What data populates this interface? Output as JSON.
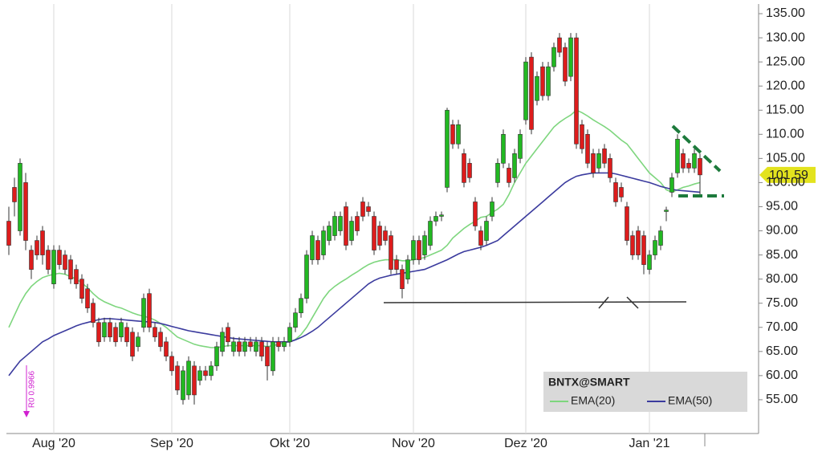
{
  "chart_data": {
    "type": "candlestick",
    "candles": {
      "name": "BNTX@SMART",
      "up_color": "#22b822",
      "down_color": "#dd1c1c",
      "open": [
        92,
        99,
        90,
        100,
        86,
        88,
        90,
        86,
        79,
        86,
        85,
        84,
        82,
        80,
        78,
        75,
        71,
        68,
        71,
        70,
        68,
        70,
        69,
        66,
        70,
        77,
        70,
        69,
        67,
        64,
        62,
        55,
        56,
        62,
        59,
        61,
        60,
        62,
        65,
        70,
        65,
        67,
        65,
        67,
        65,
        67,
        66,
        61,
        67,
        66,
        67,
        70,
        73,
        76,
        84,
        88,
        85,
        88,
        89,
        90,
        95,
        88,
        93,
        96,
        95,
        93,
        91,
        90,
        89,
        84,
        82,
        80,
        84,
        88,
        85,
        87,
        92,
        93,
        99,
        112,
        108,
        106,
        104,
        96,
        90,
        88,
        93,
        100,
        104,
        103,
        101,
        105,
        113,
        126,
        117,
        124,
        118,
        124,
        130,
        128,
        122,
        130,
        112,
        110,
        106,
        103,
        107,
        105,
        100,
        99,
        95,
        89,
        90,
        89,
        82,
        85,
        87,
        94,
        98,
        102,
        106,
        104,
        103,
        105
      ],
      "high": [
        95,
        101,
        105,
        102,
        87,
        89,
        91,
        87,
        87,
        87,
        86,
        85,
        83,
        81,
        79,
        76,
        72,
        72,
        72,
        71,
        72,
        71,
        70,
        69,
        77,
        78,
        71,
        70,
        68,
        65,
        63,
        62,
        64,
        63,
        62,
        62,
        63,
        67,
        70,
        71,
        68,
        68,
        68,
        68,
        68,
        68,
        67,
        68,
        68,
        68,
        71,
        74,
        77,
        86,
        90,
        89,
        91,
        92,
        94,
        94,
        96,
        93,
        94,
        97,
        96,
        94,
        92,
        91,
        90,
        85,
        83,
        85,
        89,
        89,
        90,
        93,
        94,
        94,
        115.5,
        113,
        113,
        107,
        105,
        97,
        91,
        93,
        97,
        105,
        111,
        104,
        107,
        111,
        126,
        127,
        123,
        125,
        125,
        129,
        131,
        129,
        131,
        131,
        113,
        111,
        107,
        107,
        108,
        106,
        101,
        100,
        96,
        90,
        91,
        90,
        86,
        89,
        91,
        95,
        102,
        110,
        107,
        105,
        107,
        106
      ],
      "low": [
        85,
        93,
        89,
        86,
        80,
        84,
        83,
        81,
        78,
        82,
        81,
        79,
        78,
        75,
        73,
        70,
        66,
        67,
        67,
        66,
        67,
        66,
        63,
        65,
        69,
        69,
        67,
        65,
        63,
        60,
        56,
        54,
        55,
        54,
        58,
        59,
        59,
        61,
        64,
        66,
        64,
        64,
        64,
        65,
        64,
        63,
        59,
        60,
        65,
        65,
        66,
        69,
        72,
        75,
        83,
        83,
        84,
        87,
        88,
        89,
        86,
        87,
        89,
        92,
        93,
        85,
        86,
        87,
        81,
        81,
        76,
        79,
        83,
        83,
        84,
        86,
        91,
        92,
        98,
        107,
        107,
        99,
        100,
        90,
        86,
        87,
        92,
        99,
        103,
        99,
        100,
        104,
        112,
        110,
        116,
        117,
        117,
        123,
        126,
        120,
        121,
        107,
        106,
        103,
        101,
        102,
        103,
        100,
        95,
        96,
        87,
        84,
        84,
        81,
        81,
        84,
        86,
        92,
        97,
        101,
        102,
        102,
        102,
        97
      ],
      "close": [
        87,
        96,
        104,
        88,
        82,
        85,
        85,
        82,
        86,
        83,
        82,
        80,
        79,
        76,
        74,
        71,
        67,
        71,
        68,
        67,
        71,
        67,
        64,
        68,
        76,
        70,
        68,
        66,
        64,
        61,
        57,
        61,
        63,
        56,
        61,
        60,
        62,
        66,
        69,
        67,
        67,
        65,
        67,
        66,
        67,
        64,
        62,
        67,
        66,
        67,
        70,
        73,
        76,
        85,
        89,
        84,
        90,
        91,
        93,
        93,
        87,
        92,
        90,
        93,
        94,
        86,
        87,
        88,
        82,
        82,
        78,
        84,
        88,
        84,
        89,
        92,
        93,
        93.3,
        115,
        108,
        112,
        100,
        101,
        91,
        87,
        92,
        96,
        104,
        110,
        100,
        106,
        110,
        125,
        111,
        122,
        118,
        124,
        128,
        127,
        121,
        130,
        108,
        107,
        104,
        102,
        106,
        104,
        101,
        96,
        97,
        88,
        85,
        85,
        83,
        85,
        88,
        90,
        94.3,
        101,
        109,
        103,
        103,
        106,
        101.59
      ]
    },
    "series": [
      {
        "name": "EMA(20)",
        "color": "#7ed67e",
        "values": [
          70,
          72.5,
          75,
          77,
          78.5,
          79.5,
          80.3,
          80.7,
          81,
          81.2,
          81,
          80.5,
          80,
          79.2,
          78.2,
          77,
          76,
          75.3,
          74.8,
          74.3,
          74,
          73.5,
          73,
          72.6,
          72.3,
          72,
          71.5,
          70.8,
          70,
          69,
          68,
          67.5,
          67,
          66.5,
          66.2,
          66,
          65.8,
          65.8,
          66,
          66.2,
          66.2,
          66.2,
          66.2,
          66.2,
          66.2,
          66.2,
          66,
          66.2,
          66.5,
          66.8,
          67,
          67.5,
          68.5,
          70,
          72,
          74,
          76,
          77.5,
          78.5,
          79.3,
          80,
          80.8,
          81.5,
          82.3,
          83,
          83.5,
          83.8,
          84,
          84,
          84,
          83.8,
          83.8,
          84,
          84.2,
          84.5,
          85,
          85.5,
          86,
          87,
          88.5,
          89.5,
          90.5,
          91.3,
          92,
          92.8,
          93,
          93.8,
          94.5,
          95.5,
          97.5,
          100,
          102,
          104,
          105.5,
          107,
          108.5,
          110,
          111.5,
          112.5,
          113.3,
          114,
          115,
          114.5,
          113.8,
          113,
          112.3,
          111.6,
          110.8,
          109.8,
          108.8,
          108,
          106.5,
          105,
          103.5,
          102,
          101,
          100,
          98.5,
          98,
          98.5,
          99,
          99.3,
          99.7,
          100
        ]
      },
      {
        "name": "EMA(50)",
        "color": "#3b3b9e",
        "values": [
          60,
          61.5,
          63,
          64,
          65,
          66,
          67,
          67.6,
          68.3,
          68.8,
          69.3,
          69.8,
          70.3,
          70.7,
          71,
          71.3,
          71.6,
          71.8,
          71.8,
          71.7,
          71.6,
          71.5,
          71.4,
          71.3,
          71.2,
          71.1,
          71,
          70.8,
          70.5,
          70.2,
          69.9,
          69.6,
          69.3,
          69.1,
          68.9,
          68.7,
          68.5,
          68.3,
          68.1,
          67.9,
          67.7,
          67.6,
          67.5,
          67.4,
          67.3,
          67.2,
          67.1,
          67,
          67,
          67,
          67,
          67.4,
          67.9,
          68.5,
          69.2,
          70,
          71,
          72,
          73,
          74,
          75,
          76,
          77,
          78,
          79,
          79.7,
          80.2,
          80.5,
          80.8,
          81,
          81.2,
          81.4,
          81.6,
          81.8,
          82,
          82.5,
          83,
          83.5,
          84,
          84.6,
          85.2,
          85.7,
          86,
          86.3,
          86.6,
          87,
          87.5,
          88,
          89,
          90,
          91,
          92,
          93,
          94,
          95,
          96,
          97,
          98,
          99,
          100,
          100.7,
          101.3,
          101.6,
          101.8,
          102,
          102,
          102,
          102,
          101.8,
          101.5,
          101.2,
          100.9,
          100.6,
          100.3,
          100,
          99.6,
          99.2,
          98.9,
          98.6,
          98.4,
          98.3,
          98.2,
          98.1,
          98
        ]
      }
    ],
    "last_price": 101.59,
    "last_price_color": "#e3e31e",
    "annotation": "R0 0.9966",
    "ylim": [
      48,
      137
    ],
    "yticks": [
      {
        "value": 55,
        "label": "55.00"
      },
      {
        "value": 60,
        "label": "60.00"
      },
      {
        "value": 65,
        "label": "65.00"
      },
      {
        "value": 70,
        "label": "70.00"
      },
      {
        "value": 75,
        "label": "75.00"
      },
      {
        "value": 80,
        "label": "80.00"
      },
      {
        "value": 85,
        "label": "85.00"
      },
      {
        "value": 90,
        "label": "90.00"
      },
      {
        "value": 95,
        "label": "95.00"
      },
      {
        "value": 100,
        "label": "100.00"
      },
      {
        "value": 105,
        "label": "105.00"
      },
      {
        "value": 110,
        "label": "110.00"
      },
      {
        "value": 115,
        "label": "115.00"
      },
      {
        "value": 120,
        "label": "120.00"
      },
      {
        "value": 125,
        "label": "125.00"
      },
      {
        "value": 130,
        "label": "130.00"
      },
      {
        "value": 135,
        "label": "135.00"
      }
    ],
    "xticks": [
      {
        "value": 8,
        "label": "Aug '20"
      },
      {
        "value": 29,
        "label": "Sep '20"
      },
      {
        "value": 50,
        "label": "Okt '20"
      },
      {
        "value": 72,
        "label": "Nov '20"
      },
      {
        "value": 92,
        "label": "Dez '20"
      },
      {
        "value": 114,
        "label": "Jan '21"
      }
    ],
    "xgrid": true
  }
}
